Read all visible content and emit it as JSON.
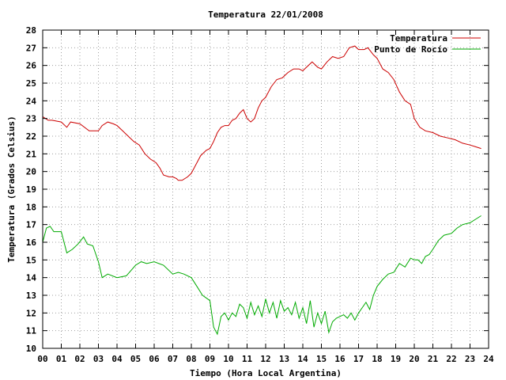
{
  "chart_data": {
    "type": "line",
    "title": "Temperatura 22/01/2008",
    "xlabel": "Tiempo (Hora Local Argentina)",
    "ylabel": "Temperatura (Grados Celsius)",
    "xlim": [
      0,
      24
    ],
    "ylim": [
      10,
      28
    ],
    "x_ticks": [
      "00",
      "01",
      "02",
      "03",
      "04",
      "05",
      "06",
      "07",
      "08",
      "09",
      "10",
      "11",
      "12",
      "13",
      "14",
      "15",
      "16",
      "17",
      "18",
      "19",
      "20",
      "21",
      "22",
      "23",
      "24"
    ],
    "y_ticks": [
      "10",
      "11",
      "12",
      "13",
      "14",
      "15",
      "16",
      "17",
      "18",
      "19",
      "20",
      "21",
      "22",
      "23",
      "24",
      "25",
      "26",
      "27",
      "28"
    ],
    "grid": true,
    "legend_position": "top-right",
    "series": [
      {
        "name": "Temperatura",
        "color": "#cc0000",
        "x": [
          0.0,
          0.15,
          0.3,
          0.5,
          1.0,
          1.3,
          1.5,
          2.0,
          2.5,
          2.8,
          3.0,
          3.2,
          3.5,
          3.8,
          4.0,
          4.3,
          4.6,
          4.9,
          5.2,
          5.5,
          5.8,
          6.1,
          6.3,
          6.5,
          6.8,
          7.0,
          7.2,
          7.3,
          7.5,
          7.8,
          8.0,
          8.2,
          8.5,
          8.8,
          9.0,
          9.2,
          9.4,
          9.6,
          9.8,
          10.0,
          10.2,
          10.4,
          10.6,
          10.8,
          11.0,
          11.2,
          11.4,
          11.6,
          11.8,
          12.0,
          12.3,
          12.6,
          12.9,
          13.2,
          13.5,
          13.8,
          14.0,
          14.2,
          14.5,
          14.8,
          15.0,
          15.3,
          15.6,
          15.9,
          16.2,
          16.5,
          16.8,
          17.0,
          17.3,
          17.5,
          17.8,
          18.0,
          18.3,
          18.6,
          18.9,
          19.2,
          19.5,
          19.8,
          20.0,
          20.3,
          20.6,
          21.0,
          21.4,
          21.8,
          22.2,
          22.6,
          23.0,
          23.3,
          23.6
        ],
        "y": [
          23.1,
          23.0,
          22.9,
          22.9,
          22.8,
          22.5,
          22.8,
          22.7,
          22.3,
          22.3,
          22.3,
          22.6,
          22.8,
          22.7,
          22.6,
          22.3,
          22.0,
          21.7,
          21.5,
          21.0,
          20.7,
          20.5,
          20.2,
          19.8,
          19.7,
          19.7,
          19.6,
          19.5,
          19.5,
          19.7,
          19.9,
          20.3,
          20.9,
          21.2,
          21.3,
          21.7,
          22.2,
          22.5,
          22.6,
          22.6,
          22.9,
          23.0,
          23.3,
          23.5,
          23.0,
          22.8,
          23.0,
          23.6,
          24.0,
          24.2,
          24.8,
          25.2,
          25.3,
          25.6,
          25.8,
          25.8,
          25.7,
          25.9,
          26.2,
          25.9,
          25.8,
          26.2,
          26.5,
          26.4,
          26.5,
          27.0,
          27.1,
          26.9,
          26.9,
          27.0,
          26.6,
          26.4,
          25.8,
          25.6,
          25.2,
          24.5,
          24.0,
          23.8,
          23.0,
          22.5,
          22.3,
          22.2,
          22.0,
          21.9,
          21.8,
          21.6,
          21.5,
          21.4,
          21.3
        ]
      },
      {
        "name": "Punto de Rocío",
        "color": "#00aa00",
        "x": [
          0.0,
          0.2,
          0.4,
          0.6,
          1.0,
          1.3,
          1.6,
          1.9,
          2.2,
          2.4,
          2.7,
          3.0,
          3.2,
          3.5,
          4.0,
          4.5,
          5.0,
          5.3,
          5.6,
          6.0,
          6.5,
          7.0,
          7.3,
          7.6,
          8.0,
          8.3,
          8.6,
          9.0,
          9.2,
          9.4,
          9.6,
          9.8,
          10.0,
          10.2,
          10.4,
          10.6,
          10.8,
          11.0,
          11.2,
          11.4,
          11.6,
          11.8,
          12.0,
          12.2,
          12.4,
          12.6,
          12.8,
          13.0,
          13.2,
          13.4,
          13.6,
          13.8,
          14.0,
          14.2,
          14.4,
          14.6,
          14.8,
          15.0,
          15.2,
          15.4,
          15.6,
          15.8,
          16.0,
          16.2,
          16.4,
          16.6,
          16.8,
          17.0,
          17.2,
          17.4,
          17.6,
          17.8,
          18.0,
          18.3,
          18.6,
          18.9,
          19.2,
          19.5,
          19.8,
          20.0,
          20.2,
          20.4,
          20.6,
          20.8,
          21.0,
          21.3,
          21.6,
          22.0,
          22.3,
          22.6,
          23.0,
          23.3,
          23.6
        ],
        "y": [
          16.0,
          16.8,
          16.9,
          16.6,
          16.6,
          15.4,
          15.6,
          15.9,
          16.3,
          15.9,
          15.8,
          14.9,
          14.0,
          14.2,
          14.0,
          14.1,
          14.7,
          14.9,
          14.8,
          14.9,
          14.7,
          14.2,
          14.3,
          14.2,
          14.0,
          13.5,
          13.0,
          12.7,
          11.2,
          10.8,
          11.8,
          12.0,
          11.6,
          12.0,
          11.8,
          12.5,
          12.3,
          11.7,
          12.6,
          11.9,
          12.4,
          11.8,
          12.8,
          12.0,
          12.6,
          11.7,
          12.7,
          12.1,
          12.3,
          11.9,
          12.6,
          11.7,
          12.3,
          11.4,
          12.7,
          11.2,
          12.0,
          11.4,
          12.1,
          10.9,
          11.5,
          11.7,
          11.8,
          11.9,
          11.7,
          12.0,
          11.6,
          12.0,
          12.3,
          12.6,
          12.2,
          13.0,
          13.5,
          13.9,
          14.2,
          14.3,
          14.8,
          14.6,
          15.1,
          15.0,
          15.0,
          14.8,
          15.2,
          15.3,
          15.6,
          16.1,
          16.4,
          16.5,
          16.8,
          17.0,
          17.1,
          17.3,
          17.5
        ]
      }
    ]
  }
}
